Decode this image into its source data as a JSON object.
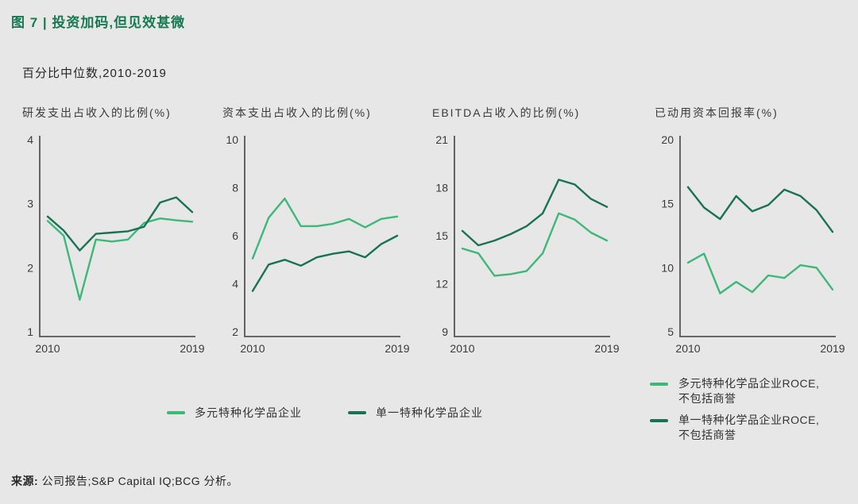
{
  "page": {
    "title": "图 7 | 投资加码,但见效甚微",
    "subtitle": "百分比中位数,2010-2019",
    "source_label": "来源:",
    "source_text": "公司报告;S&P Capital IQ;BCG 分析。"
  },
  "colors": {
    "title_green": "#157a50",
    "diversified": "#3eb878",
    "focused": "#187353",
    "axis": "#565656"
  },
  "legend_bottom": [
    {
      "label": "多元特种化学品企业",
      "color_key": "diversified"
    },
    {
      "label": "单一特种化学品企业",
      "color_key": "focused"
    }
  ],
  "legend_right": [
    {
      "line1": "多元特种化学品企业ROCE,",
      "line2": "不包括商誉",
      "color_key": "diversified"
    },
    {
      "line1": "单一特种化学品企业ROCE,",
      "line2": "不包括商誉",
      "color_key": "focused"
    }
  ],
  "chart_data": [
    {
      "type": "line",
      "title": "研发支出占收入的比例(%)",
      "x": [
        2010,
        2011,
        2012,
        2013,
        2014,
        2015,
        2016,
        2017,
        2018,
        2019
      ],
      "x_axis_labels": [
        "2010",
        "2019"
      ],
      "ylim": [
        1,
        4
      ],
      "yticks": [
        1,
        2,
        3,
        4
      ],
      "grid": false,
      "series": [
        {
          "name": "多元特种化学品企业",
          "color_key": "diversified",
          "values": [
            2.73,
            2.5,
            1.5,
            2.44,
            2.41,
            2.44,
            2.7,
            2.77,
            2.74,
            2.72
          ]
        },
        {
          "name": "单一特种化学品企业",
          "color_key": "focused",
          "values": [
            2.8,
            2.58,
            2.27,
            2.53,
            2.55,
            2.57,
            2.64,
            3.02,
            3.1,
            2.87
          ]
        }
      ]
    },
    {
      "type": "line",
      "title": "资本支出占收入的比例(%)",
      "x": [
        2010,
        2011,
        2012,
        2013,
        2014,
        2015,
        2016,
        2017,
        2018,
        2019
      ],
      "x_axis_labels": [
        "2010",
        "2019"
      ],
      "ylim": [
        2,
        10
      ],
      "yticks": [
        2,
        4,
        6,
        8,
        10
      ],
      "grid": false,
      "series": [
        {
          "name": "多元特种化学品企业",
          "color_key": "diversified",
          "values": [
            5.05,
            6.75,
            7.55,
            6.4,
            6.4,
            6.5,
            6.7,
            6.35,
            6.7,
            6.8
          ]
        },
        {
          "name": "单一特种化学品企业",
          "color_key": "focused",
          "values": [
            3.7,
            4.8,
            5.0,
            4.75,
            5.1,
            5.25,
            5.35,
            5.1,
            5.65,
            6.0
          ]
        }
      ]
    },
    {
      "type": "line",
      "title": "EBITDA占收入的比例(%)",
      "x": [
        2010,
        2011,
        2012,
        2013,
        2014,
        2015,
        2016,
        2017,
        2018,
        2019
      ],
      "x_axis_labels": [
        "2010",
        "2019"
      ],
      "ylim": [
        9,
        21
      ],
      "yticks": [
        9,
        12,
        15,
        18,
        21
      ],
      "grid": false,
      "series": [
        {
          "name": "多元特种化学品企业",
          "color_key": "diversified",
          "values": [
            14.2,
            13.9,
            12.5,
            12.6,
            12.8,
            13.9,
            16.4,
            16.0,
            15.2,
            14.7
          ]
        },
        {
          "name": "单一特种化学品企业",
          "color_key": "focused",
          "values": [
            15.3,
            14.4,
            14.7,
            15.1,
            15.6,
            16.4,
            18.5,
            18.2,
            17.3,
            16.8
          ]
        }
      ]
    },
    {
      "type": "line",
      "title": "已动用资本回报率(%)",
      "x": [
        2010,
        2011,
        2012,
        2013,
        2014,
        2015,
        2016,
        2017,
        2018,
        2019
      ],
      "x_axis_labels": [
        "2010",
        "2019"
      ],
      "ylim": [
        5,
        20
      ],
      "yticks": [
        5,
        10,
        15,
        20
      ],
      "grid": false,
      "series": [
        {
          "name": "多元特种化学品企业ROCE,不包括商誉",
          "color_key": "diversified",
          "values": [
            10.4,
            11.1,
            8.0,
            8.9,
            8.1,
            9.4,
            9.2,
            10.2,
            10.0,
            8.3
          ]
        },
        {
          "name": "单一特种化学品企业ROCE,不包括商誉",
          "color_key": "focused",
          "values": [
            16.3,
            14.7,
            13.8,
            15.6,
            14.4,
            14.9,
            16.1,
            15.6,
            14.5,
            12.8
          ]
        }
      ]
    }
  ]
}
